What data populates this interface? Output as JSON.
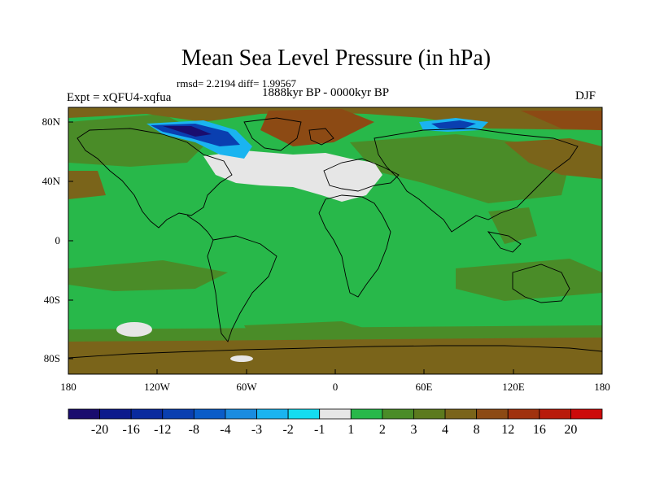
{
  "title": "Mean Sea Level Pressure (in hPa)",
  "stats": "rmsd= 2.2194 diff= 1.99567",
  "period": "1888kyr BP - 0000kyr BP",
  "experiment": "Expt = xQFU4-xqfua",
  "season": "DJF",
  "axes": {
    "lat_ticks": [
      "80N",
      "40N",
      "0",
      "40S",
      "80S"
    ],
    "lon_ticks": [
      "180",
      "120W",
      "60W",
      "0",
      "60E",
      "120E",
      "180"
    ]
  },
  "colorbar": {
    "colors": [
      "#1a0d6e",
      "#0d1a8c",
      "#0a2a9e",
      "#0a3fb0",
      "#0a5cc8",
      "#1a8ce0",
      "#1ab4f0",
      "#14dcf0",
      "#e6e6e6",
      "#28b84a",
      "#4a8c28",
      "#5c7a1e",
      "#7a641a",
      "#8c4a14",
      "#a0320e",
      "#b81a0a",
      "#cc0a0a"
    ],
    "labels": [
      "-20",
      "-16",
      "-12",
      "-8",
      "-4",
      "-3",
      "-2",
      "-1",
      "1",
      "2",
      "3",
      "4",
      "8",
      "12",
      "16",
      "20"
    ]
  }
}
